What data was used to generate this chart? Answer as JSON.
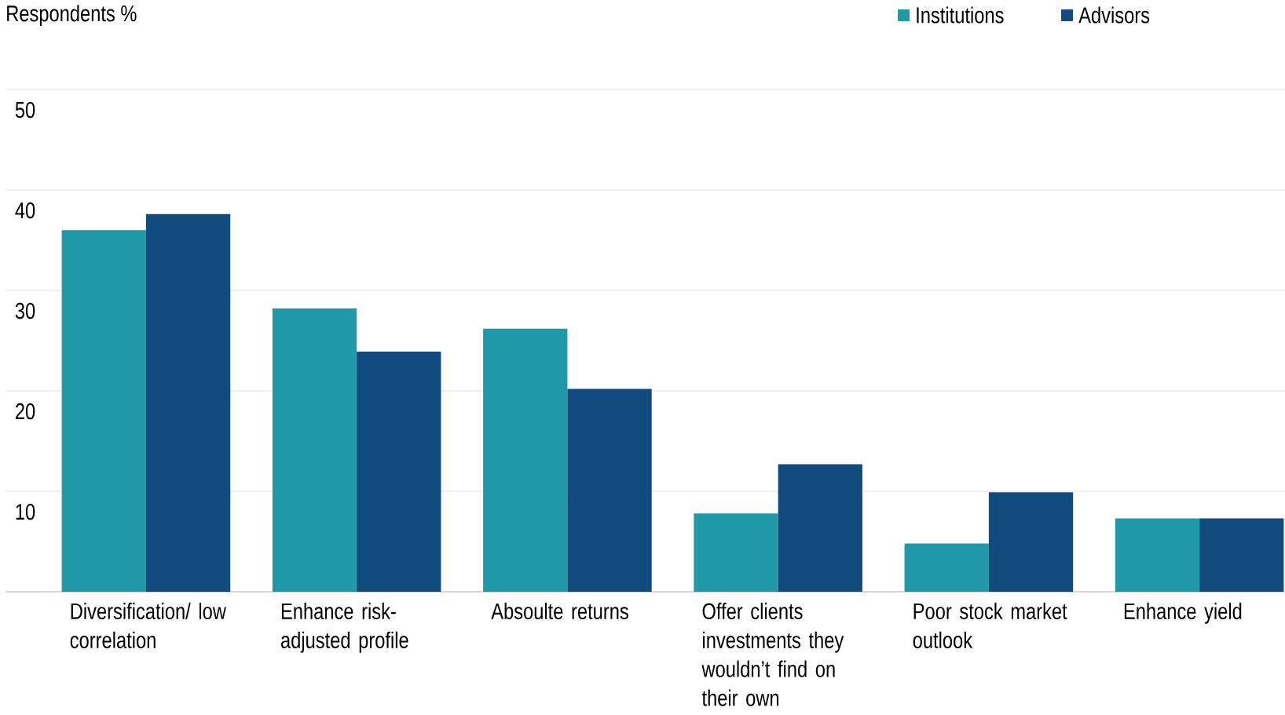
{
  "chart_data": {
    "type": "bar",
    "ylabel": "Respondents %",
    "categories": [
      "Diversification/ low correlation",
      "Enhance risk-adjusted profile",
      "Absoulte returns",
      "Offer clients investments they wouldn’t find on their own",
      "Poor stock market outlook",
      "Enhance yield"
    ],
    "series": [
      {
        "name": "Institutions",
        "color": "#2099a9",
        "values": [
          36.0,
          28.2,
          26.2,
          7.8,
          4.8,
          7.3
        ]
      },
      {
        "name": "Advisors",
        "color": "#124b7d",
        "values": [
          37.6,
          23.9,
          20.2,
          12.7,
          9.9,
          7.3
        ]
      }
    ],
    "ylim": [
      0,
      50
    ],
    "yticks": [
      {
        "value": 0,
        "label": null
      },
      10,
      20,
      30,
      40,
      50
    ],
    "grid": "y",
    "legend": "top right"
  }
}
